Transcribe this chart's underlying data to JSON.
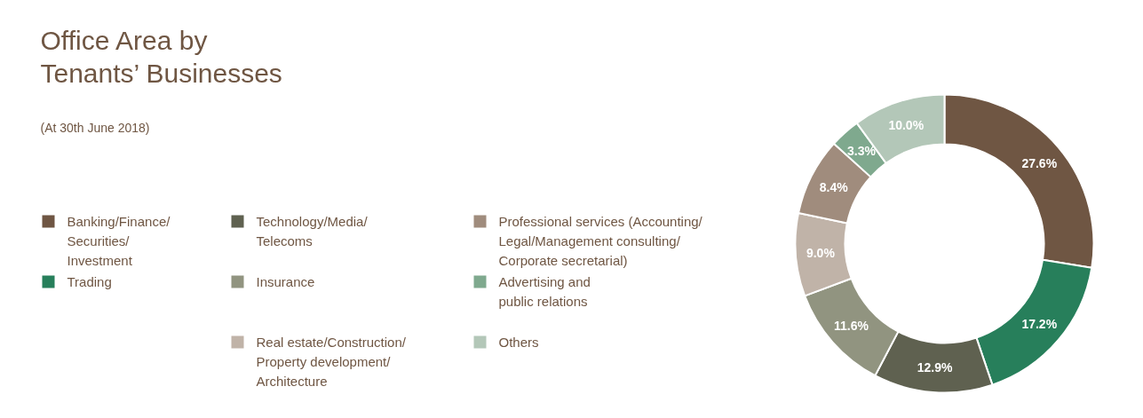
{
  "chart_data": {
    "type": "donut",
    "title": "Office Area by\nTenants’ Businesses",
    "subtitle": "(At 30th June 2018)",
    "categories": [
      "Banking/Finance/\nSecurities/\nInvestment",
      "Trading",
      "Technology/Media/\nTelecoms",
      "Insurance",
      "Real estate/Construction/\nProperty development/\nArchitecture",
      "Professional services (Accounting/\nLegal/Management consulting/\nCorporate secretarial)",
      "Advertising and\npublic relations",
      "Others"
    ],
    "values": [
      27.6,
      17.2,
      12.9,
      11.6,
      9.0,
      8.4,
      3.3,
      10.0
    ],
    "value_labels": [
      "27.6%",
      "17.2%",
      "12.9%",
      "11.6%",
      "9.0%",
      "8.4%",
      "3.3%",
      "10.0%"
    ],
    "colors": [
      "#6f5643",
      "#277f5b",
      "#5f6150",
      "#919480",
      "#c0b3a8",
      "#a08c7d",
      "#7fa98e",
      "#b3c7b8"
    ],
    "legend": "left"
  }
}
